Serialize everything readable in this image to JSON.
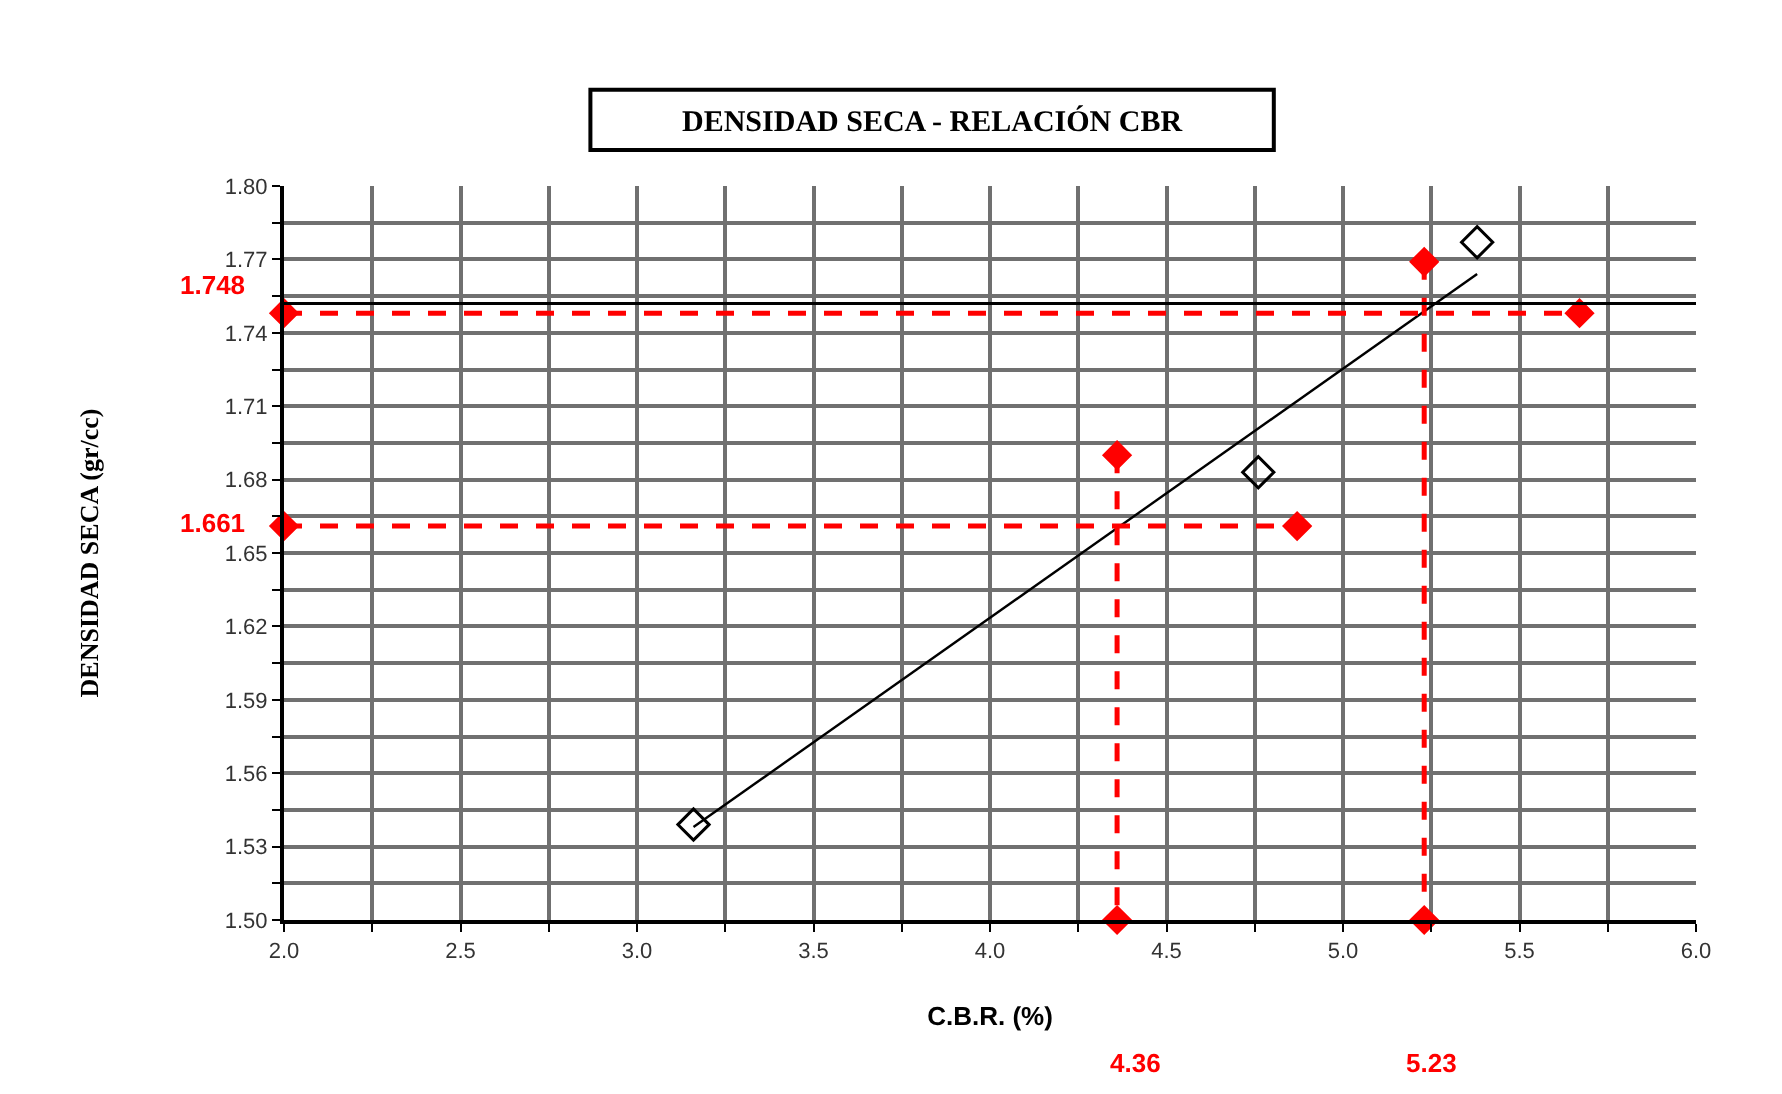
{
  "chart_data": {
    "type": "scatter",
    "title": "DENSIDAD SECA - RELACIÓN CBR",
    "xlabel": "C.B.R. (%)",
    "ylabel": "DENSIDAD SECA (gr/cc)",
    "xlim": [
      2.0,
      6.0
    ],
    "xticks": [
      {
        "value": 2.0,
        "label": "2.0"
      },
      {
        "value": 2.25,
        "label": null
      },
      {
        "value": 2.5,
        "label": "2.5"
      },
      {
        "value": 2.75,
        "label": null
      },
      {
        "value": 3.0,
        "label": "3.0"
      },
      {
        "value": 3.25,
        "label": null
      },
      {
        "value": 3.5,
        "label": "3.5"
      },
      {
        "value": 3.75,
        "label": null
      },
      {
        "value": 4.0,
        "label": "4.0"
      },
      {
        "value": 4.25,
        "label": null
      },
      {
        "value": 4.5,
        "label": "4.5"
      },
      {
        "value": 4.75,
        "label": null
      },
      {
        "value": 5.0,
        "label": "5.0"
      },
      {
        "value": 5.25,
        "label": null
      },
      {
        "value": 5.5,
        "label": "5.5"
      },
      {
        "value": 5.75,
        "label": null
      },
      {
        "value": 6.0,
        "label": "6.0"
      }
    ],
    "ylim": [
      1.5,
      1.8
    ],
    "yticks": [
      {
        "value": 1.5,
        "label": "1.50"
      },
      {
        "value": 1.515,
        "label": null
      },
      {
        "value": 1.53,
        "label": "1.53"
      },
      {
        "value": 1.545,
        "label": null
      },
      {
        "value": 1.56,
        "label": "1.56"
      },
      {
        "value": 1.575,
        "label": null
      },
      {
        "value": 1.59,
        "label": "1.59"
      },
      {
        "value": 1.605,
        "label": null
      },
      {
        "value": 1.62,
        "label": "1.62"
      },
      {
        "value": 1.635,
        "label": null
      },
      {
        "value": 1.65,
        "label": "1.65"
      },
      {
        "value": 1.665,
        "label": null
      },
      {
        "value": 1.68,
        "label": "1.68"
      },
      {
        "value": 1.695,
        "label": null
      },
      {
        "value": 1.71,
        "label": "1.71"
      },
      {
        "value": 1.725,
        "label": null
      },
      {
        "value": 1.74,
        "label": "1.74"
      },
      {
        "value": 1.755,
        "label": null
      },
      {
        "value": 1.77,
        "label": "1.77"
      },
      {
        "value": 1.785,
        "label": null
      },
      {
        "value": 1.8,
        "label": "1.80"
      }
    ],
    "grid": true,
    "series": [
      {
        "color": "#000000",
        "marker": "diamond",
        "x": [
          3.16,
          4.76,
          5.38
        ],
        "values": [
          1.539,
          1.683,
          1.777
        ]
      },
      {
        "type": "line",
        "color": "#000000",
        "marker": "none",
        "line_style": "solid",
        "x": [
          3.16,
          5.38
        ],
        "values": [
          1.538,
          1.764
        ]
      },
      {
        "type": "line",
        "color": "#ff0000",
        "marker": "diamond",
        "line_style": "dashed",
        "x": [
          2.0,
          5.67
        ],
        "values": [
          1.748,
          1.748
        ]
      },
      {
        "type": "line",
        "color": "#ff0000",
        "marker": "diamond",
        "line_style": "dashed",
        "x": [
          2.0,
          4.87
        ],
        "values": [
          1.661,
          1.661
        ]
      },
      {
        "type": "line",
        "color": "#ff0000",
        "marker": "diamond",
        "line_style": "dashed",
        "x": [
          4.36,
          4.36
        ],
        "values": [
          1.69,
          1.5
        ]
      },
      {
        "type": "line",
        "color": "#ff0000",
        "marker": "diamond",
        "line_style": "dashed",
        "x": [
          5.23,
          5.23
        ],
        "values": [
          1.769,
          1.5
        ]
      }
    ],
    "ref_lines": [
      {
        "axis": "y",
        "value": 1.752,
        "color": "#000000",
        "line_style": "solid"
      }
    ],
    "annotations": [
      "1.748",
      "1.661",
      "4.36",
      "5.23"
    ]
  }
}
